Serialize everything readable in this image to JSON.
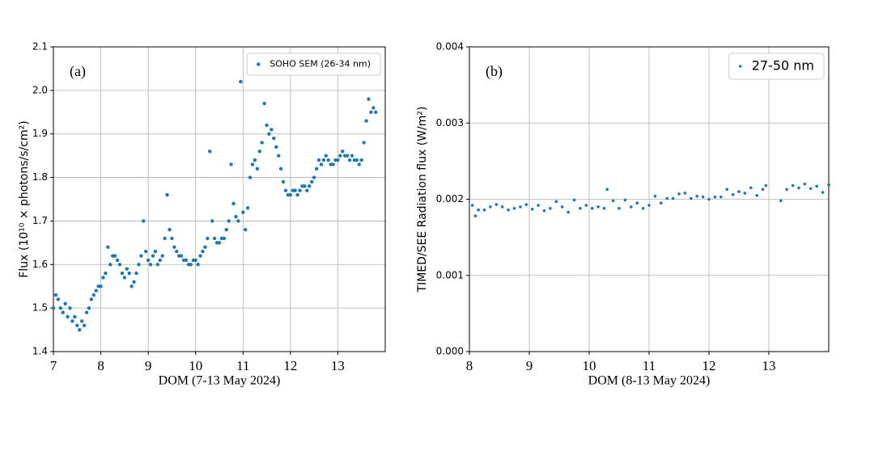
{
  "chart_data": [
    {
      "type": "scatter",
      "annotation": "(a)",
      "xlabel": "DOM (7-13 May 2024)",
      "ylabel": "Flux (10¹⁰ × photons/s/cm²)",
      "xlim": [
        7,
        14
      ],
      "xticks": [
        7,
        8,
        9,
        10,
        11,
        12,
        13
      ],
      "ylim": [
        1.4,
        2.1
      ],
      "yticks": [
        1.4,
        1.5,
        1.6,
        1.7,
        1.8,
        1.9,
        {
          "value": 2,
          "label": "2.0"
        },
        2.1
      ],
      "grid": true,
      "legend": "upper right",
      "x": [
        7.0,
        7.05,
        7.1,
        7.15,
        7.2,
        7.25,
        7.3,
        7.35,
        7.4,
        7.45,
        7.5,
        7.55,
        7.6,
        7.65,
        7.7,
        7.75,
        7.8,
        7.85,
        7.9,
        7.95,
        8.0,
        8.05,
        8.1,
        8.15,
        8.2,
        8.25,
        8.3,
        8.35,
        8.4,
        8.45,
        8.5,
        8.55,
        8.6,
        8.65,
        8.7,
        8.75,
        8.8,
        8.85,
        8.9,
        8.95,
        9.0,
        9.05,
        9.1,
        9.15,
        9.2,
        9.25,
        9.3,
        9.35,
        9.4,
        9.45,
        9.5,
        9.55,
        9.6,
        9.65,
        9.7,
        9.75,
        9.8,
        9.85,
        9.9,
        9.95,
        10.0,
        10.05,
        10.1,
        10.15,
        10.2,
        10.25,
        10.3,
        10.35,
        10.4,
        10.45,
        10.5,
        10.55,
        10.6,
        10.65,
        10.7,
        10.75,
        10.8,
        10.85,
        10.9,
        10.95,
        11.0,
        11.05,
        11.1,
        11.15,
        11.2,
        11.25,
        11.3,
        11.35,
        11.4,
        11.45,
        11.5,
        11.55,
        11.6,
        11.65,
        11.7,
        11.75,
        11.8,
        11.85,
        11.9,
        11.95,
        12.0,
        12.05,
        12.1,
        12.15,
        12.2,
        12.25,
        12.3,
        12.35,
        12.4,
        12.45,
        12.5,
        12.55,
        12.6,
        12.65,
        12.7,
        12.75,
        12.8,
        12.85,
        12.9,
        12.95,
        13.0,
        13.05,
        13.1,
        13.15,
        13.2,
        13.25,
        13.3,
        13.35,
        13.4,
        13.45,
        13.5,
        13.55,
        13.6,
        13.65,
        13.7,
        13.75,
        13.8
      ],
      "series": [
        {
          "name": "SOHO SEM (26-34 nm)",
          "color": "#1f77b4",
          "values": [
            1.5,
            1.53,
            1.52,
            1.5,
            1.49,
            1.51,
            1.48,
            1.5,
            1.47,
            1.48,
            1.46,
            1.45,
            1.47,
            1.46,
            1.49,
            1.5,
            1.52,
            1.53,
            1.54,
            1.55,
            1.55,
            1.57,
            1.58,
            1.64,
            1.6,
            1.62,
            1.62,
            1.61,
            1.6,
            1.58,
            1.57,
            1.59,
            1.58,
            1.55,
            1.56,
            1.58,
            1.6,
            1.62,
            1.7,
            1.63,
            1.61,
            1.6,
            1.62,
            1.63,
            1.6,
            1.61,
            1.62,
            1.66,
            1.76,
            1.68,
            1.66,
            1.64,
            1.63,
            1.62,
            1.62,
            1.61,
            1.61,
            1.6,
            1.6,
            1.61,
            1.61,
            1.6,
            1.62,
            1.63,
            1.64,
            1.66,
            1.86,
            1.7,
            1.66,
            1.65,
            1.65,
            1.66,
            1.66,
            1.68,
            1.7,
            1.83,
            1.74,
            1.71,
            1.7,
            2.02,
            1.72,
            1.68,
            1.73,
            1.8,
            1.83,
            1.84,
            1.82,
            1.86,
            1.88,
            1.97,
            1.92,
            1.9,
            1.91,
            1.89,
            1.87,
            1.85,
            1.82,
            1.79,
            1.77,
            1.76,
            1.76,
            1.77,
            1.77,
            1.76,
            1.77,
            1.78,
            1.78,
            1.77,
            1.78,
            1.79,
            1.8,
            1.82,
            1.84,
            1.83,
            1.84,
            1.85,
            1.84,
            1.83,
            1.83,
            1.84,
            1.84,
            1.85,
            1.86,
            1.85,
            1.85,
            1.84,
            1.85,
            1.84,
            1.84,
            1.83,
            1.84,
            1.88,
            1.93,
            1.98,
            1.95,
            1.96,
            1.95
          ]
        }
      ]
    },
    {
      "type": "scatter",
      "annotation": "(b)",
      "xlabel": "DOM (8-13 May 2024)",
      "ylabel": "TIMED/SEE Radiation flux (W/m²)",
      "xlim": [
        8,
        14
      ],
      "xticks": [
        8,
        9,
        10,
        11,
        12,
        13
      ],
      "ylim": [
        0,
        0.004
      ],
      "yticks": [
        {
          "value": 0,
          "label": "0.000"
        },
        {
          "value": 0.001,
          "label": "0.001"
        },
        {
          "value": 0.002,
          "label": "0.002"
        },
        {
          "value": 0.003,
          "label": "0.003"
        },
        {
          "value": 0.004,
          "label": "0.004"
        }
      ],
      "grid": true,
      "legend": "upper right",
      "x": [
        8.05,
        8.1,
        8.15,
        8.25,
        8.35,
        8.45,
        8.55,
        8.65,
        8.75,
        8.85,
        8.95,
        9.05,
        9.15,
        9.25,
        9.35,
        9.45,
        9.55,
        9.65,
        9.75,
        9.85,
        9.95,
        10.05,
        10.15,
        10.25,
        10.3,
        10.4,
        10.5,
        10.6,
        10.7,
        10.8,
        10.9,
        11.0,
        11.1,
        11.2,
        11.3,
        11.4,
        11.5,
        11.6,
        11.7,
        11.8,
        11.9,
        12.0,
        12.1,
        12.2,
        12.3,
        12.4,
        12.5,
        12.6,
        12.7,
        12.8,
        12.9,
        12.95,
        13.2,
        13.3,
        13.4,
        13.5,
        13.6,
        13.7,
        13.8,
        13.9,
        14.0
      ],
      "series": [
        {
          "name": "27-50 nm",
          "color": "#1f77b4",
          "values": [
            0.00192,
            0.00178,
            0.00186,
            0.00186,
            0.0019,
            0.00193,
            0.0019,
            0.00186,
            0.00188,
            0.0019,
            0.00193,
            0.00187,
            0.00192,
            0.00185,
            0.00188,
            0.00197,
            0.0019,
            0.00183,
            0.00199,
            0.00188,
            0.00192,
            0.00188,
            0.0019,
            0.00188,
            0.00213,
            0.00198,
            0.00188,
            0.00199,
            0.0019,
            0.00195,
            0.00188,
            0.00192,
            0.00204,
            0.00195,
            0.00201,
            0.00201,
            0.00207,
            0.00208,
            0.00201,
            0.00204,
            0.00203,
            0.002,
            0.00203,
            0.00203,
            0.00213,
            0.00206,
            0.0021,
            0.00208,
            0.00215,
            0.00205,
            0.00213,
            0.00218,
            0.00198,
            0.00213,
            0.00218,
            0.00215,
            0.0022,
            0.00214,
            0.00217,
            0.00209,
            0.00219
          ]
        }
      ]
    }
  ]
}
